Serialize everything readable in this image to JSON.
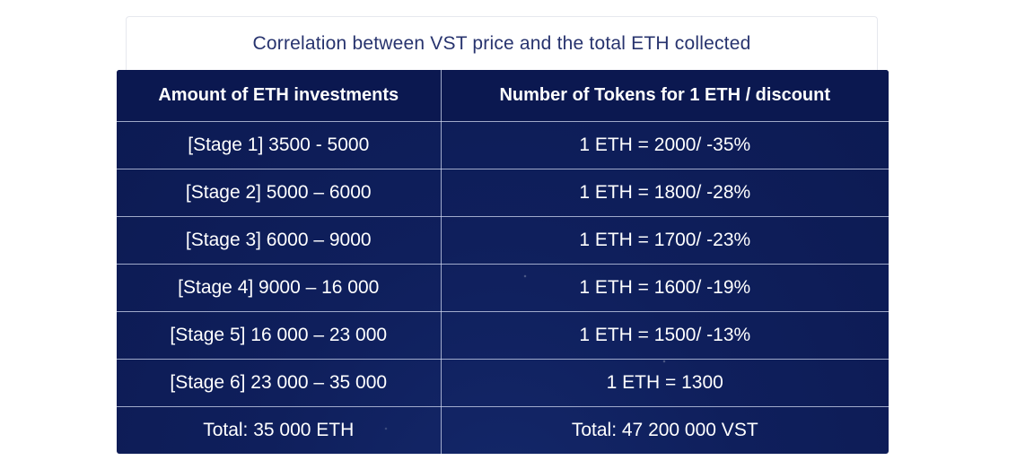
{
  "caption": "Correlation between VST price and the total ETH collected",
  "table": {
    "headers": [
      "Amount of ETH investments",
      "Number of Tokens for 1 ETH / discount"
    ],
    "rows": [
      {
        "amount": "[Stage 1] 3500 - 5000",
        "tokens": "1 ETH = 2000/ -35%"
      },
      {
        "amount": "[Stage 2] 5000 – 6000",
        "tokens": "1 ETH = 1800/ -28%"
      },
      {
        "amount": "[Stage 3] 6000 – 9000",
        "tokens": "1 ETH = 1700/ -23%"
      },
      {
        "amount": "[Stage 4] 9000 – 16 000",
        "tokens": "1 ETH = 1600/ -19%"
      },
      {
        "amount": "[Stage 5] 16 000 – 23 000",
        "tokens": "1 ETH = 1500/ -13%"
      },
      {
        "amount": "[Stage 6] 23 000 – 35 000",
        "tokens": "1 ETH = 1300"
      }
    ],
    "total": {
      "amount": "Total: 35 000 ETH",
      "tokens": "Total: 47 200 000 VST"
    }
  },
  "colors": {
    "caption_text": "#27336e",
    "table_background": "#0f1f5c",
    "table_text": "#ffffff"
  }
}
